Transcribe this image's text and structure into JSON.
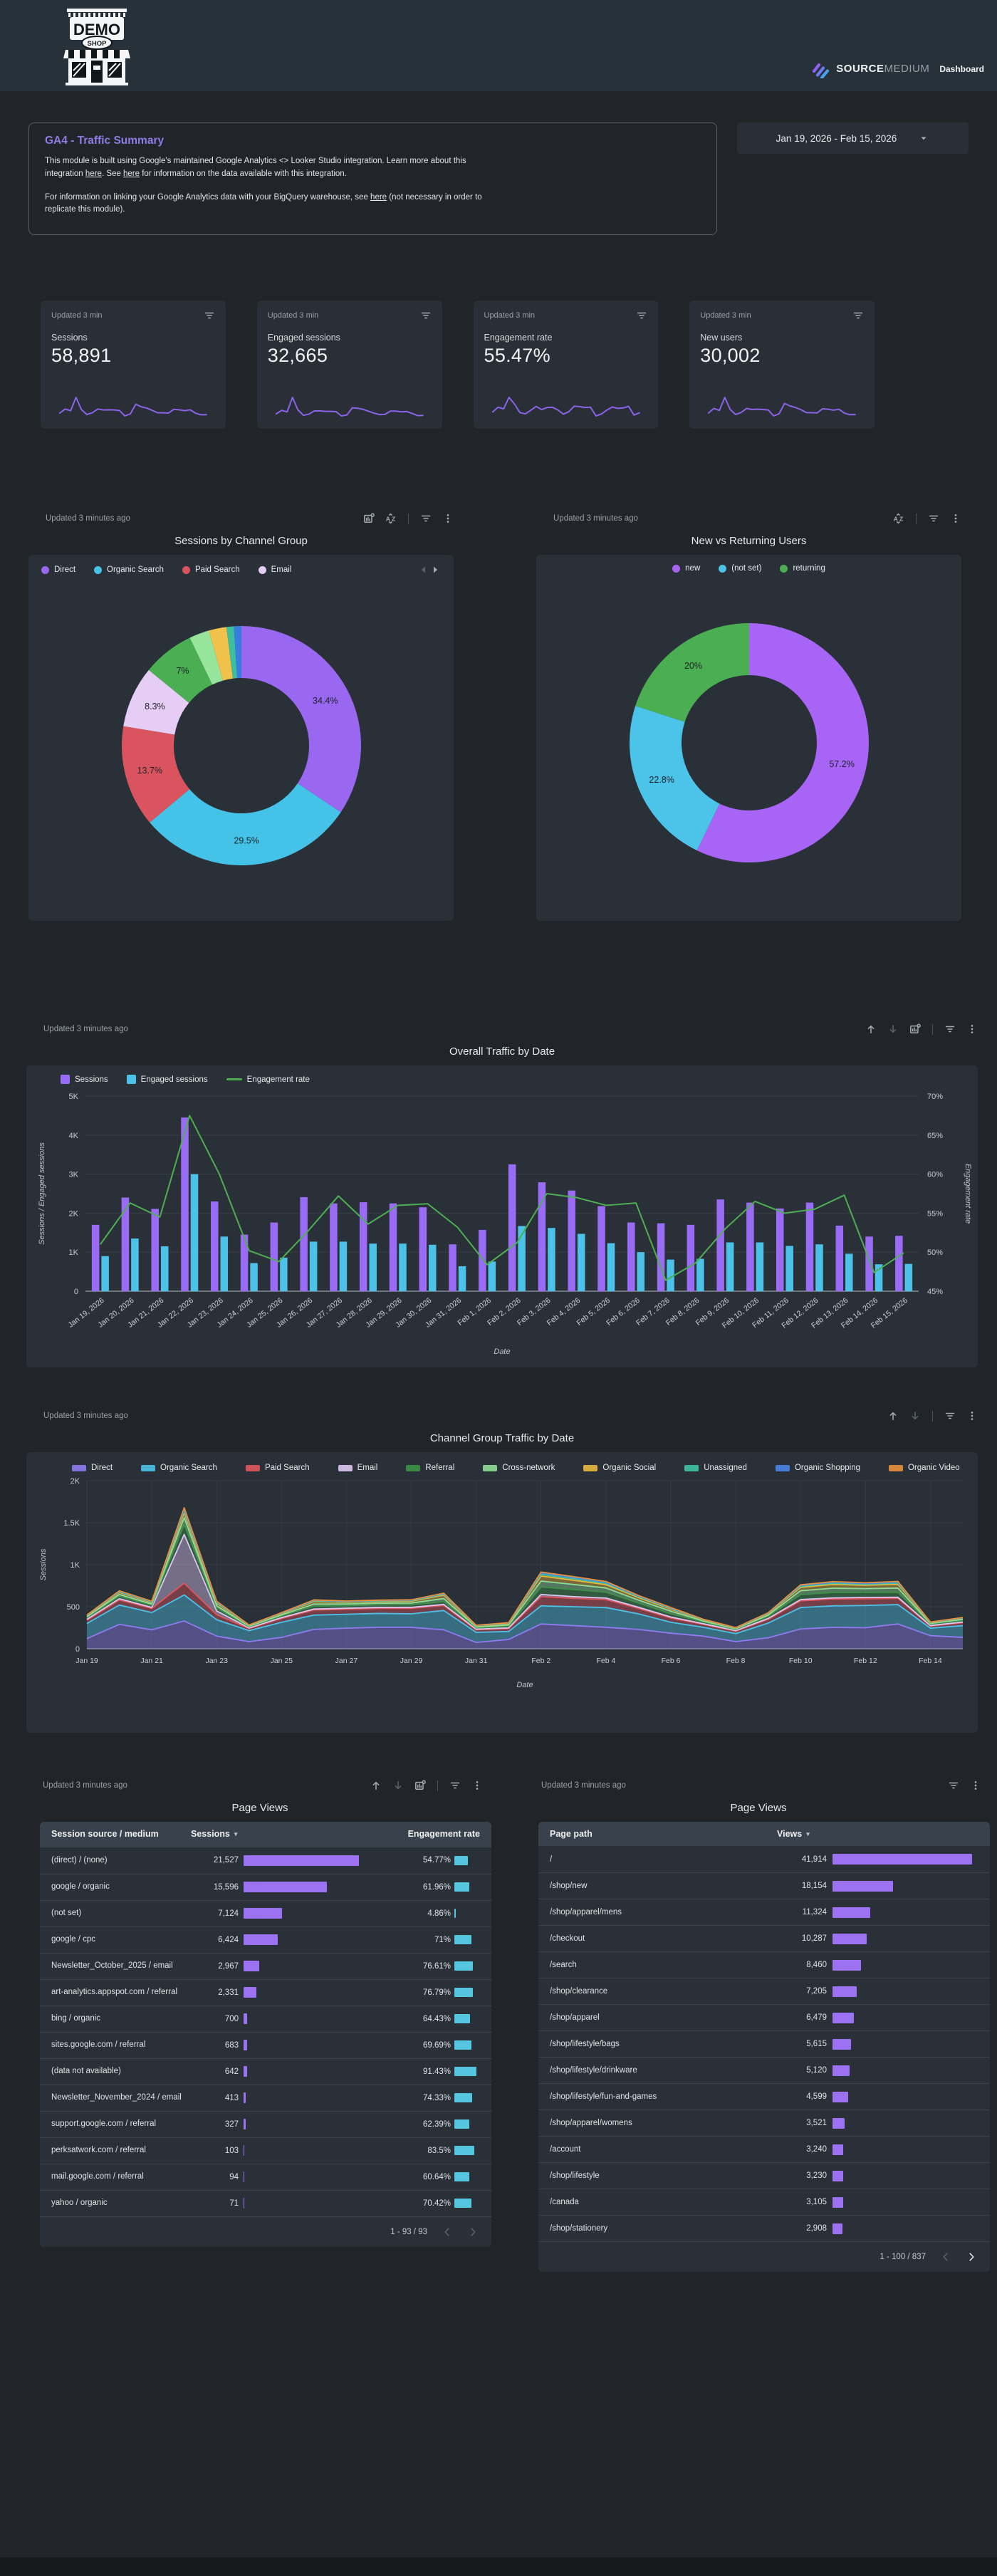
{
  "header": {
    "store_logo": "DEMO SHOP",
    "store_sign": "DEMO",
    "store_badge": "SHOP",
    "brand_source": "SOURCE",
    "brand_medium": "MEDIUM",
    "brand_suffix": "Dashboard"
  },
  "intro": {
    "title": "GA4 - Traffic Summary",
    "paragraphs": [
      [
        {
          "text": "This module is built using Google's maintained Google Analytics <> Looker Studio integration.  Learn more about this integration "
        },
        {
          "text": "here",
          "link": true
        },
        {
          "text": ".  See "
        },
        {
          "text": "here",
          "link": true
        },
        {
          "text": " for information on the data available with this integration."
        }
      ],
      [
        {
          "text": "For information on linking your Google Analytics data with your BigQuery warehouse, see "
        },
        {
          "text": "here",
          "link": true
        },
        {
          "text": " (not necessary in order to replicate this module)."
        }
      ]
    ],
    "date_range": "Jan 19, 2026 - Feb 15, 2026"
  },
  "scorecards": [
    {
      "updated": "Updated 3 min",
      "label": "Sessions",
      "value": "58,891",
      "spark": [
        1700,
        2400,
        2110,
        4450,
        2300,
        1450,
        1760,
        2410,
        2250,
        2280,
        2250,
        2150,
        1200,
        1570,
        3250,
        2790,
        2580,
        2180,
        1760,
        1740,
        1700,
        2350,
        2270,
        2120,
        2270,
        1680,
        1400,
        1420
      ]
    },
    {
      "updated": "Updated 3 min",
      "label": "Engaged sessions",
      "value": "32,665",
      "spark": [
        900,
        1350,
        1150,
        3000,
        1400,
        720,
        860,
        1270,
        1270,
        1220,
        1220,
        1190,
        640,
        760,
        1670,
        1620,
        1470,
        1230,
        1000,
        810,
        830,
        1250,
        1250,
        1160,
        1200,
        960,
        690,
        700
      ]
    },
    {
      "updated": "Updated 3 min",
      "label": "Engagement rate",
      "value": "55.47%",
      "spark": [
        51,
        56.3,
        54.5,
        67.5,
        60,
        50.2,
        48.8,
        52.8,
        57.2,
        53.6,
        56,
        56.2,
        53.2,
        48.4,
        51.2,
        57.5,
        57,
        56,
        56.3,
        46.4,
        48.6,
        53,
        56.5,
        55,
        55.5,
        57.3,
        47.4,
        49.9
      ]
    },
    {
      "updated": "Updated 3 min",
      "label": "New users",
      "value": "30,002",
      "spark": [
        1050,
        1500,
        1300,
        2600,
        1400,
        900,
        1100,
        1500,
        1400,
        1420,
        1400,
        1350,
        760,
        980,
        2000,
        1750,
        1600,
        1380,
        1100,
        1080,
        1060,
        1470,
        1420,
        1330,
        1420,
        1050,
        880,
        890
      ]
    }
  ],
  "chart_data": {
    "donut1": {
      "type": "pie",
      "updated": "Updated 3 minutes ago",
      "title": "Sessions by Channel Group",
      "legend_visible": 4,
      "slices": [
        {
          "label": "Direct",
          "value": 34.4,
          "pct": "34.4%",
          "color": "#9a67f0"
        },
        {
          "label": "Organic Search",
          "value": 29.5,
          "pct": "29.5%",
          "color": "#45c2e8"
        },
        {
          "label": "Paid Search",
          "value": 13.7,
          "pct": "13.7%",
          "color": "#d9545e"
        },
        {
          "label": "Email",
          "value": 8.3,
          "pct": "8.3%",
          "color": "#e5cdf6"
        },
        {
          "label": "Referral",
          "value": 7.0,
          "pct": "7%",
          "color": "#4aae52"
        },
        {
          "label": "Cross-network",
          "value": 2.7,
          "pct": "",
          "color": "#96e59b"
        },
        {
          "label": "Organic Social",
          "value": 2.4,
          "pct": "",
          "color": "#f0c24b"
        },
        {
          "label": "Unassigned",
          "value": 1.0,
          "pct": "",
          "color": "#3bbf9e"
        },
        {
          "label": "Organic Shopping",
          "value": 1.0,
          "pct": "",
          "color": "#3a7de0"
        }
      ]
    },
    "donut2": {
      "type": "pie",
      "updated": "Updated 3 minutes ago",
      "title": "New vs Returning Users",
      "legend_visible": 3,
      "slices": [
        {
          "label": "new",
          "value": 57.2,
          "pct": "57.2%",
          "color": "#a864f5"
        },
        {
          "label": "(not set)",
          "value": 22.8,
          "pct": "22.8%",
          "color": "#4cc3e8"
        },
        {
          "label": "returning",
          "value": 20.0,
          "pct": "20%",
          "color": "#4cae52"
        }
      ]
    },
    "combo": {
      "type": "bar",
      "updated": "Updated 3 minutes ago",
      "title": "Overall Traffic by Date",
      "legend": [
        {
          "label": "Sessions",
          "color": "#9a6cf5",
          "swatch": "rect"
        },
        {
          "label": "Engaged sessions",
          "color": "#4cc2e8",
          "swatch": "rect"
        },
        {
          "label": "Engagement rate",
          "color": "#4fae54",
          "swatch": "line"
        }
      ],
      "dates": [
        "Jan 19, 2026",
        "Jan 20, 2026",
        "Jan 21, 2026",
        "Jan 22, 2026",
        "Jan 23, 2026",
        "Jan 24, 2026",
        "Jan 25, 2026",
        "Jan 26, 2026",
        "Jan 27, 2026",
        "Jan 28, 2026",
        "Jan 29, 2026",
        "Jan 30, 2026",
        "Jan 31, 2026",
        "Feb 1, 2026",
        "Feb 2, 2026",
        "Feb 3, 2026",
        "Feb 4, 2026",
        "Feb 5, 2026",
        "Feb 6, 2026",
        "Feb 7, 2026",
        "Feb 8, 2026",
        "Feb 9, 2026",
        "Feb 10, 2026",
        "Feb 11, 2026",
        "Feb 12, 2026",
        "Feb 13, 2026",
        "Feb 14, 2026",
        "Feb 15, 2026"
      ],
      "sessions": [
        1700,
        2400,
        2110,
        4450,
        2300,
        1450,
        1760,
        2410,
        2250,
        2280,
        2250,
        2150,
        1200,
        1570,
        3250,
        2790,
        2580,
        2180,
        1760,
        1740,
        1700,
        2350,
        2270,
        2120,
        2270,
        1680,
        1400,
        1420
      ],
      "engaged": [
        900,
        1350,
        1150,
        3000,
        1400,
        720,
        860,
        1270,
        1270,
        1220,
        1220,
        1190,
        640,
        760,
        1670,
        1620,
        1470,
        1230,
        1000,
        810,
        830,
        1250,
        1250,
        1160,
        1200,
        960,
        690,
        700
      ],
      "rate": [
        51,
        56.3,
        54.5,
        67.5,
        60,
        50.2,
        48.8,
        52.8,
        57.2,
        53.6,
        56,
        56.2,
        53.2,
        48.4,
        51.2,
        57.5,
        57,
        56,
        56.3,
        46.4,
        48.6,
        53,
        56.5,
        55,
        55.5,
        57.3,
        47.4,
        49.9
      ],
      "y_ticks": [
        "0",
        "1K",
        "2K",
        "3K",
        "4K",
        "5K"
      ],
      "y_max": 5000,
      "y2_ticks": [
        "45%",
        "50%",
        "55%",
        "60%",
        "65%",
        "70%"
      ],
      "y2_min": 45,
      "y2_max": 70,
      "y_label": "Sessions  /  Engaged sessions",
      "y2_label": "Engagement rate",
      "x_label": "Date"
    },
    "area": {
      "type": "area",
      "updated": "Updated 3 minutes ago",
      "title": "Channel Group Traffic by Date",
      "y_ticks": [
        "0",
        "500",
        "1K",
        "1.5K",
        "2K"
      ],
      "y_max": 2000,
      "y_label": "Sessions",
      "x_label": "Date",
      "x_tick_labels": [
        "Jan 19",
        "Jan 21",
        "Jan 23",
        "Jan 25",
        "Jan 27",
        "Jan 29",
        "Jan 31",
        "Feb 2",
        "Feb 4",
        "Feb 6",
        "Feb 8",
        "Feb 10",
        "Feb 12",
        "Feb 14"
      ],
      "series": [
        {
          "name": "Direct",
          "color": "#8e7cf0",
          "values": [
            120,
            290,
            225,
            330,
            150,
            85,
            135,
            230,
            245,
            255,
            255,
            225,
            75,
            110,
            295,
            275,
            255,
            230,
            185,
            150,
            85,
            130,
            235,
            255,
            250,
            295,
            155,
            135
          ]
        },
        {
          "name": "Organic Search",
          "color": "#4cc2e8",
          "values": [
            180,
            230,
            205,
            310,
            195,
            130,
            180,
            170,
            165,
            165,
            160,
            230,
            120,
            95,
            215,
            225,
            235,
            185,
            130,
            105,
            95,
            175,
            255,
            255,
            265,
            230,
            90,
            140
          ]
        },
        {
          "name": "Paid Search",
          "color": "#e0565e",
          "values": [
            40,
            60,
            50,
            140,
            60,
            25,
            45,
            60,
            60,
            60,
            65,
            60,
            30,
            35,
            110,
            100,
            95,
            65,
            50,
            35,
            30,
            45,
            80,
            80,
            80,
            75,
            25,
            35
          ]
        },
        {
          "name": "Email",
          "color": "#dcc8f2",
          "values": [
            10,
            15,
            12,
            580,
            45,
            8,
            10,
            12,
            12,
            12,
            12,
            12,
            8,
            8,
            25,
            20,
            18,
            14,
            12,
            8,
            6,
            10,
            15,
            15,
            15,
            12,
            6,
            8
          ]
        },
        {
          "name": "Referral",
          "color": "#3f9149",
          "values": [
            20,
            30,
            25,
            120,
            35,
            12,
            20,
            35,
            30,
            30,
            30,
            35,
            15,
            20,
            90,
            85,
            70,
            50,
            40,
            20,
            12,
            25,
            60,
            65,
            60,
            60,
            15,
            20
          ]
        },
        {
          "name": "Cross-network",
          "color": "#90dd95",
          "values": [
            10,
            20,
            15,
            80,
            25,
            8,
            12,
            25,
            20,
            20,
            22,
            35,
            10,
            15,
            70,
            60,
            50,
            35,
            30,
            12,
            8,
            15,
            45,
            50,
            45,
            50,
            10,
            12
          ]
        },
        {
          "name": "Organic Social",
          "color": "#e8b93e",
          "values": [
            12,
            25,
            18,
            60,
            30,
            8,
            15,
            30,
            20,
            20,
            22,
            40,
            12,
            15,
            60,
            50,
            40,
            30,
            25,
            12,
            8,
            15,
            40,
            45,
            40,
            45,
            10,
            12
          ]
        },
        {
          "name": "Unassigned",
          "color": "#3cc4a4",
          "values": [
            4,
            8,
            6,
            25,
            10,
            3,
            5,
            8,
            7,
            7,
            7,
            10,
            4,
            5,
            20,
            18,
            15,
            10,
            8,
            4,
            3,
            5,
            12,
            14,
            12,
            14,
            3,
            4
          ]
        },
        {
          "name": "Organic Shopping",
          "color": "#4a84e8",
          "values": [
            3,
            6,
            5,
            18,
            8,
            2,
            4,
            6,
            5,
            5,
            5,
            8,
            3,
            4,
            15,
            14,
            12,
            8,
            6,
            3,
            2,
            4,
            10,
            11,
            10,
            11,
            2,
            3
          ]
        },
        {
          "name": "Organic Video",
          "color": "#e8923c",
          "values": [
            2,
            5,
            4,
            15,
            7,
            2,
            3,
            5,
            4,
            4,
            4,
            6,
            2,
            3,
            12,
            11,
            10,
            7,
            5,
            2,
            2,
            3,
            8,
            9,
            8,
            9,
            2,
            3
          ]
        }
      ]
    }
  },
  "tables": {
    "t1": {
      "updated": "Updated 3 minutes ago",
      "title": "Page Views",
      "col1": "Session source / medium",
      "col2": "Sessions",
      "col3": "Engagement rate",
      "s_max": 21527,
      "rows": [
        {
          "source": "(direct) / (none)",
          "sessions": "21,527",
          "s": 21527,
          "rate": "54.77%",
          "r": 54.77
        },
        {
          "source": "google / organic",
          "sessions": "15,596",
          "s": 15596,
          "rate": "61.96%",
          "r": 61.96
        },
        {
          "source": "(not set)",
          "sessions": "7,124",
          "s": 7124,
          "rate": "4.86%",
          "r": 4.86
        },
        {
          "source": "google / cpc",
          "sessions": "6,424",
          "s": 6424,
          "rate": "71%",
          "r": 71
        },
        {
          "source": "Newsletter_October_2025 / email",
          "sessions": "2,967",
          "s": 2967,
          "rate": "76.61%",
          "r": 76.61
        },
        {
          "source": "art-analytics.appspot.com / referral",
          "sessions": "2,331",
          "s": 2331,
          "rate": "76.79%",
          "r": 76.79
        },
        {
          "source": "bing / organic",
          "sessions": "700",
          "s": 700,
          "rate": "64.43%",
          "r": 64.43
        },
        {
          "source": "sites.google.com / referral",
          "sessions": "683",
          "s": 683,
          "rate": "69.69%",
          "r": 69.69
        },
        {
          "source": "(data not available)",
          "sessions": "642",
          "s": 642,
          "rate": "91.43%",
          "r": 91.43
        },
        {
          "source": "Newsletter_November_2024 / email",
          "sessions": "413",
          "s": 413,
          "rate": "74.33%",
          "r": 74.33
        },
        {
          "source": "support.google.com / referral",
          "sessions": "327",
          "s": 327,
          "rate": "62.39%",
          "r": 62.39
        },
        {
          "source": "perksatwork.com / referral",
          "sessions": "103",
          "s": 103,
          "rate": "83.5%",
          "r": 83.5
        },
        {
          "source": "mail.google.com / referral",
          "sessions": "94",
          "s": 94,
          "rate": "60.64%",
          "r": 60.64
        },
        {
          "source": "yahoo / organic",
          "sessions": "71",
          "s": 71,
          "rate": "70.42%",
          "r": 70.42
        }
      ],
      "pagination": "1 - 93 / 93"
    },
    "t2": {
      "updated": "Updated 3 minutes ago",
      "title": "Page Views",
      "col1": "Page path",
      "col2": "Views",
      "v_max": 41914,
      "rows": [
        {
          "path": "/",
          "views": "41,914",
          "v": 41914
        },
        {
          "path": "/shop/new",
          "views": "18,154",
          "v": 18154
        },
        {
          "path": "/shop/apparel/mens",
          "views": "11,324",
          "v": 11324
        },
        {
          "path": "/checkout",
          "views": "10,287",
          "v": 10287
        },
        {
          "path": "/search",
          "views": "8,460",
          "v": 8460
        },
        {
          "path": "/shop/clearance",
          "views": "7,205",
          "v": 7205
        },
        {
          "path": "/shop/apparel",
          "views": "6,479",
          "v": 6479
        },
        {
          "path": "/shop/lifestyle/bags",
          "views": "5,615",
          "v": 5615
        },
        {
          "path": "/shop/lifestyle/drinkware",
          "views": "5,120",
          "v": 5120
        },
        {
          "path": "/shop/lifestyle/fun-and-games",
          "views": "4,599",
          "v": 4599
        },
        {
          "path": "/shop/apparel/womens",
          "views": "3,521",
          "v": 3521
        },
        {
          "path": "/account",
          "views": "3,240",
          "v": 3240
        },
        {
          "path": "/shop/lifestyle",
          "views": "3,230",
          "v": 3230
        },
        {
          "path": "/canada",
          "views": "3,105",
          "v": 3105
        },
        {
          "path": "/shop/stationery",
          "views": "2,908",
          "v": 2908
        }
      ],
      "pagination": "1 - 100 / 837"
    }
  }
}
